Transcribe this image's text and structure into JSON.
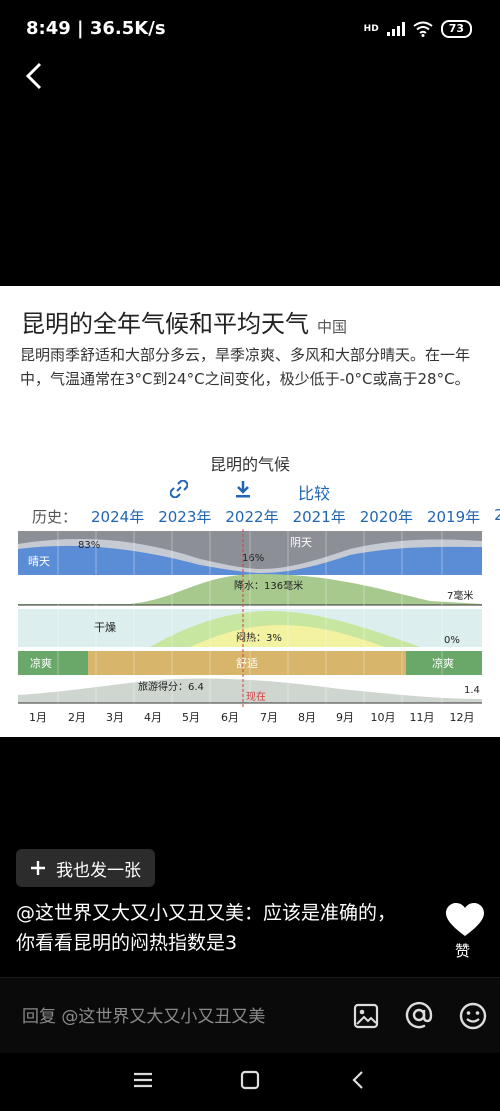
{
  "status": {
    "time_speed": "8:49 | 36.5K/s",
    "network": "HD",
    "battery": "73"
  },
  "card": {
    "title": "昆明的全年气候和平均天气",
    "country": "中国",
    "description": "昆明雨季舒适和大部分多云，旱季凉爽、多风和大部分晴天。在一年中，气温通常在3°C到24°C之间变化，极少低于-0°C或高于28°C。",
    "climate_title": "昆明的气候",
    "compare_label": "比较",
    "history_label": "历史：",
    "history_years": [
      "2024年",
      "2023年",
      "2022年",
      "2021年",
      "2020年",
      "2019年",
      "2"
    ]
  },
  "chart_data": {
    "type": "area",
    "months": [
      "1月",
      "2月",
      "3月",
      "4月",
      "5月",
      "6月",
      "7月",
      "8月",
      "9月",
      "10月",
      "11月",
      "12月"
    ],
    "bands": [
      {
        "name": "晴天",
        "peak_label": "83%",
        "min_label": "16%",
        "cloud_label": "阴天"
      },
      {
        "name": "降水",
        "label": "降水：136毫米",
        "end_label": "7毫米"
      },
      {
        "name": "干燥",
        "label": "闷热：3%",
        "end_label": "0%"
      },
      {
        "name": "comfort",
        "segments": [
          "凉爽",
          "舒适",
          "凉爽"
        ]
      },
      {
        "name": "tourism",
        "label": "旅游得分：6.4",
        "end_label": "1.4",
        "now_label": "现在"
      }
    ],
    "colors": {
      "clear": "#5b8dd6",
      "cloudy": "#8c8f96",
      "rain": "#a8c98e",
      "muggy": "#f2f2a0",
      "comfort": "#d7b56b",
      "cool": "#6aa86a"
    }
  },
  "footer": {
    "add_button": "我也发一张",
    "comment": "@这世界又大又小又丑又美：应该是准确的，你看看昆明的闷热指数是3",
    "like_label": "赞",
    "reply_placeholder": "回复 @这世界又大又小又丑又美"
  }
}
